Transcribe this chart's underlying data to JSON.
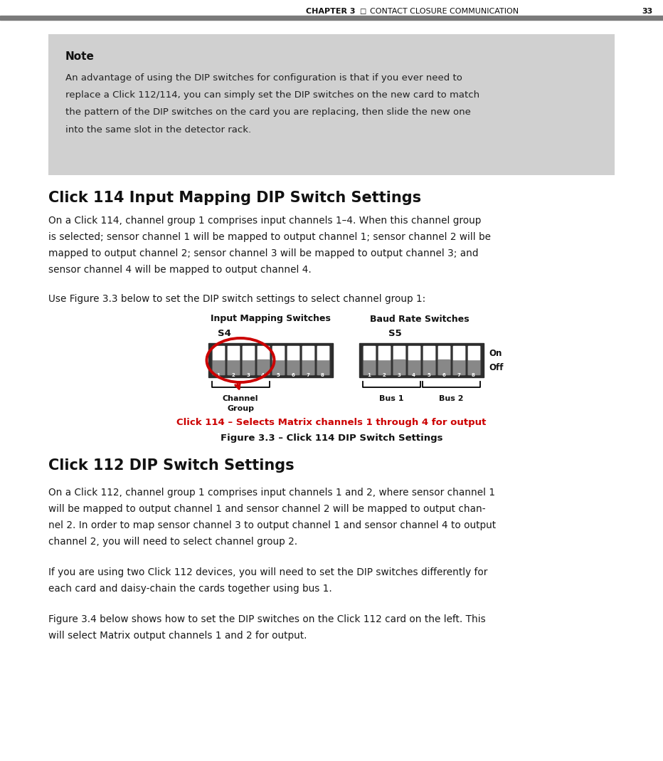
{
  "page_width": 9.32,
  "page_height": 10.69,
  "dpi": 100,
  "bg_color": "#ffffff",
  "header_bar_color": "#7a7a7a",
  "header_text_left": "CHAPTER 3",
  "header_text_mid": "□",
  "header_text_right": "CONTACT CLOSURE COMMUNICATION",
  "header_page_num": "33",
  "note_box_color": "#d0d0d0",
  "note_title": "Note",
  "note_body_lines": [
    "An advantage of using the DIP switches for configuration is that if you ever need to",
    "replace a Click 112/114, you can simply set the DIP switches on the new card to match",
    "the pattern of the DIP switches on the card you are replacing, then slide the new one",
    "into the same slot in the detector rack."
  ],
  "s1_title": "Click 114 Input Mapping DIP Switch Settings",
  "s1_para1_lines": [
    "On a Click 114, channel group 1 comprises input channels 1–4. When this channel group",
    "is selected; sensor channel 1 will be mapped to output channel 1; sensor channel 2 will be",
    "mapped to output channel 2; sensor channel 3 will be mapped to output channel 3; and",
    "sensor channel 4 will be mapped to output channel 4."
  ],
  "s1_para2": "Use Figure 3.3 below to set the DIP switch settings to select channel group 1:",
  "diag_label_input": "Input Mapping Switches",
  "diag_label_baud": "Baud Rate Switches",
  "diag_s4": "S4",
  "diag_s5": "S5",
  "diag_on": "On",
  "diag_off": "Off",
  "diag_channel_group": "Channel\nGroup",
  "diag_bus1": "Bus 1",
  "diag_bus2": "Bus 2",
  "fig_red_caption": "Click 114 – Selects Matrix channels 1 through 4 for output",
  "fig_caption": "Figure 3.3 – Click 114 DIP Switch Settings",
  "s2_title": "Click 112 DIP Switch Settings",
  "s2_para1_lines": [
    "On a Click 112, channel group 1 comprises input channels 1 and 2, where sensor channel 1",
    "will be mapped to output channel 1 and sensor channel 2 will be mapped to output chan-",
    "nel 2. In order to map sensor channel 3 to output channel 1 and sensor channel 4 to output",
    "channel 2, you will need to select channel group 2."
  ],
  "s2_para2_lines": [
    "If you are using two Click 112 devices, you will need to set the DIP switches differently for",
    "each card and daisy-chain the cards together using bus 1."
  ],
  "s2_para3_lines": [
    "Figure 3.4 below shows how to set the DIP switches on the Click 112 card on the left. This",
    "will select Matrix output channels 1 and 2 for output."
  ],
  "s4_on": [
    4
  ],
  "s5_on": [
    3,
    6
  ],
  "red_color": "#cc0000",
  "dark_sw": "#2d2d2d",
  "mid_sw": "#555555",
  "light_sw": "#888888"
}
